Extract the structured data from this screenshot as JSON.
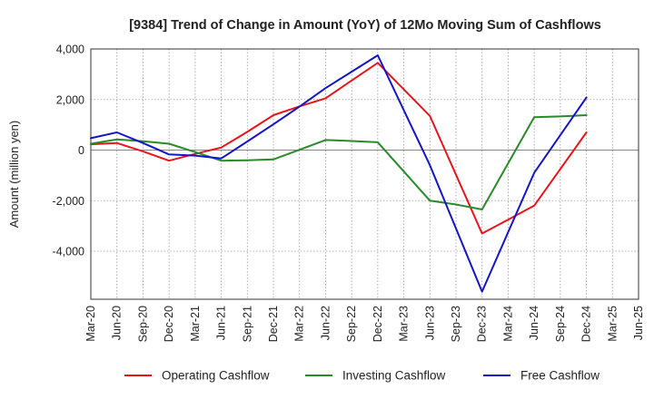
{
  "chart_data": {
    "type": "line",
    "title": "[9384]  Trend of Change in Amount (YoY) of 12Mo Moving Sum of Cashflows",
    "xlabel": "",
    "ylabel": "Amount (million yen)",
    "ylim": [
      -5900,
      4000
    ],
    "yticks": [
      4000,
      2000,
      0,
      -2000,
      -4000
    ],
    "ytick_labels": [
      "4,000",
      "2,000",
      "0",
      "-2,000",
      "-4,000"
    ],
    "grid": true,
    "legend_position": "bottom",
    "categories": [
      "Mar-20",
      "Jun-20",
      "Sep-20",
      "Dec-20",
      "Mar-21",
      "Jun-21",
      "Sep-21",
      "Dec-21",
      "Mar-22",
      "Jun-22",
      "Sep-22",
      "Dec-22",
      "Mar-23",
      "Jun-23",
      "Sep-23",
      "Dec-23",
      "Mar-24",
      "Jun-24",
      "Sep-24",
      "Dec-24",
      "Mar-25",
      "Jun-25"
    ],
    "series": [
      {
        "name": "Operating Cashflow",
        "color": "#e8151b",
        "values": [
          230,
          280,
          -50,
          -420,
          -150,
          100,
          720,
          1380,
          1730,
          2050,
          2750,
          3450,
          null,
          1350,
          null,
          -3300,
          -2750,
          -2200,
          null,
          700,
          null,
          null
        ]
      },
      {
        "name": "Investing Cashflow",
        "color": "#2a8a2a",
        "values": [
          250,
          420,
          350,
          250,
          -80,
          -420,
          -400,
          -370,
          null,
          400,
          360,
          310,
          null,
          -2000,
          -2150,
          -2350,
          null,
          1300,
          1330,
          1380,
          null,
          null
        ]
      },
      {
        "name": "Free Cashflow",
        "color": "#1414c8",
        "values": [
          470,
          700,
          280,
          -170,
          -220,
          -330,
          340,
          1020,
          1720,
          2450,
          3100,
          3750,
          null,
          -600,
          null,
          -5600,
          null,
          -900,
          null,
          2080,
          null,
          null
        ]
      }
    ]
  }
}
